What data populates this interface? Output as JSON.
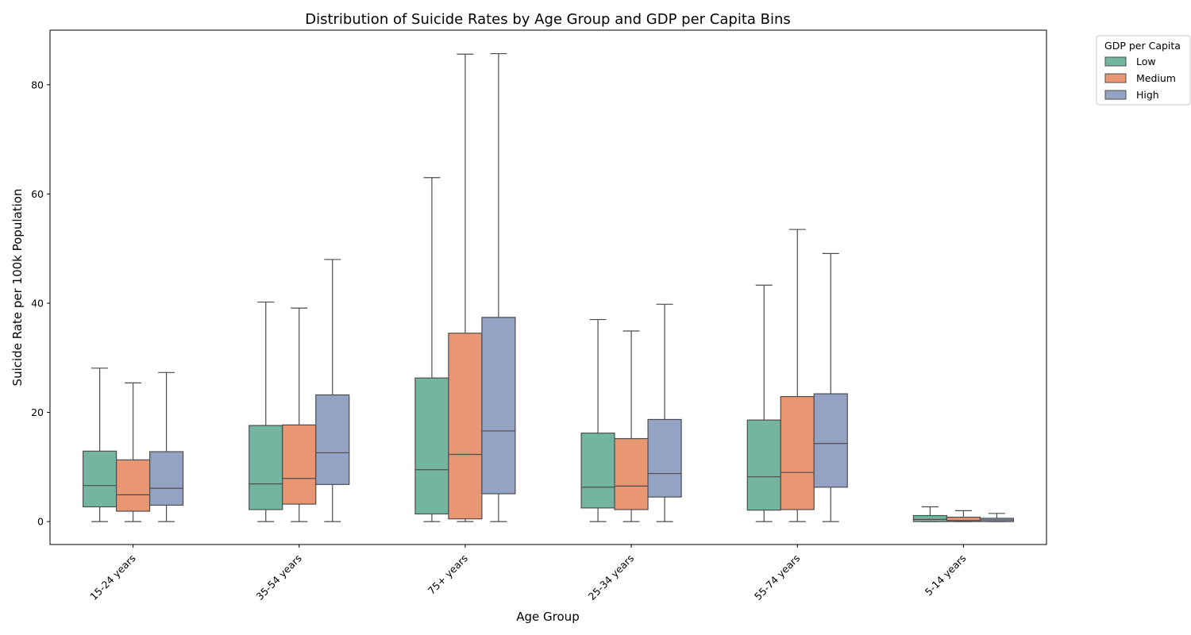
{
  "chart_data": {
    "type": "box",
    "title": "Distribution of Suicide Rates by Age Group and GDP per Capita Bins",
    "xlabel": "Age Group",
    "ylabel": "Suicide Rate per 100k Population",
    "ylim": [
      -4.2,
      90
    ],
    "yticks": [
      0,
      20,
      40,
      60,
      80
    ],
    "categories": [
      "15-24 years",
      "35-54 years",
      "75+ years",
      "25-34 years",
      "55-74 years",
      "5-14 years"
    ],
    "legend": {
      "title": "GDP per Capita",
      "placement": "outside-top-right"
    },
    "series": [
      {
        "name": "Low",
        "color": "#73b5a0",
        "boxes": [
          {
            "whislo": 0,
            "q1": 2.7,
            "med": 6.6,
            "q3": 12.9,
            "whishi": 28.1
          },
          {
            "whislo": 0,
            "q1": 2.2,
            "med": 6.9,
            "q3": 17.6,
            "whishi": 40.2
          },
          {
            "whislo": 0,
            "q1": 1.4,
            "med": 9.5,
            "q3": 26.3,
            "whishi": 63.0
          },
          {
            "whislo": 0,
            "q1": 2.5,
            "med": 6.3,
            "q3": 16.2,
            "whishi": 37.0
          },
          {
            "whislo": 0,
            "q1": 2.1,
            "med": 8.2,
            "q3": 18.6,
            "whishi": 43.3
          },
          {
            "whislo": 0,
            "q1": 0.0,
            "med": 0.4,
            "q3": 1.1,
            "whishi": 2.7
          }
        ]
      },
      {
        "name": "Medium",
        "color": "#e99672",
        "boxes": [
          {
            "whislo": 0,
            "q1": 1.9,
            "med": 4.9,
            "q3": 11.3,
            "whishi": 25.4
          },
          {
            "whislo": 0,
            "q1": 3.2,
            "med": 7.9,
            "q3": 17.7,
            "whishi": 39.1
          },
          {
            "whislo": 0,
            "q1": 0.5,
            "med": 12.3,
            "q3": 34.5,
            "whishi": 85.6
          },
          {
            "whislo": 0,
            "q1": 2.2,
            "med": 6.5,
            "q3": 15.2,
            "whishi": 34.9
          },
          {
            "whislo": 0,
            "q1": 2.2,
            "med": 9.0,
            "q3": 22.9,
            "whishi": 53.5
          },
          {
            "whislo": 0,
            "q1": 0.0,
            "med": 0.2,
            "q3": 0.8,
            "whishi": 2.0
          }
        ]
      },
      {
        "name": "High",
        "color": "#94a3c4",
        "boxes": [
          {
            "whislo": 0,
            "q1": 3.0,
            "med": 6.1,
            "q3": 12.8,
            "whishi": 27.3
          },
          {
            "whislo": 0,
            "q1": 6.8,
            "med": 12.6,
            "q3": 23.2,
            "whishi": 48.0
          },
          {
            "whislo": 0,
            "q1": 5.1,
            "med": 16.6,
            "q3": 37.4,
            "whishi": 85.7
          },
          {
            "whislo": 0,
            "q1": 4.5,
            "med": 8.8,
            "q3": 18.7,
            "whishi": 39.8
          },
          {
            "whislo": 0,
            "q1": 6.3,
            "med": 14.3,
            "q3": 23.4,
            "whishi": 49.1
          },
          {
            "whislo": 0,
            "q1": 0.0,
            "med": 0.3,
            "q3": 0.6,
            "whishi": 1.5
          }
        ]
      }
    ]
  }
}
